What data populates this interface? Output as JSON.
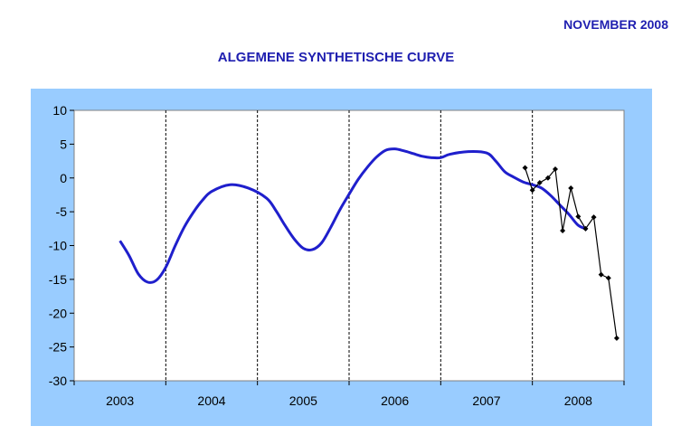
{
  "header": {
    "date": "NOVEMBER 2008",
    "title": "ALGEMENE SYNTHETISCHE CURVE"
  },
  "chart_data": {
    "type": "line",
    "title": "ALGEMENE SYNTHETISCHE CURVE",
    "xlabel": "",
    "ylabel": "",
    "ylim": [
      -30,
      10
    ],
    "yticks": [
      10,
      5,
      0,
      -5,
      -10,
      -15,
      -20,
      -25,
      -30
    ],
    "categories": [
      "2003",
      "2004",
      "2005",
      "2006",
      "2007",
      "2008"
    ],
    "grid": "vertical dashed lines at year boundaries",
    "colors": {
      "synthetic": "#1f1fcc",
      "monthly": "#000000",
      "background": "#99ccff"
    },
    "series": [
      {
        "style": "thick smooth line",
        "x": [
          2003.0,
          2003.1,
          2003.2,
          2003.3,
          2003.4,
          2003.5,
          2003.6,
          2003.7,
          2003.8,
          2003.9,
          2004.0,
          2004.2,
          2004.4,
          2004.6,
          2004.7,
          2004.8,
          2004.9,
          2005.0,
          2005.1,
          2005.2,
          2005.3,
          2005.4,
          2005.5,
          2005.6,
          2005.7,
          2005.8,
          2005.9,
          2006.0,
          2006.1,
          2006.2,
          2006.3,
          2006.4,
          2006.5,
          2006.6,
          2006.8,
          2007.0,
          2007.1,
          2007.2,
          2007.3,
          2007.4,
          2007.5,
          2007.6,
          2007.7,
          2007.8,
          2007.9,
          2008.0,
          2008.1
        ],
        "y": [
          -9.3,
          -11.5,
          -14.2,
          -15.4,
          -15.1,
          -13.2,
          -10.1,
          -7.3,
          -5.1,
          -3.3,
          -2.0,
          -1.0,
          -1.5,
          -3.0,
          -4.8,
          -7.0,
          -9.0,
          -10.4,
          -10.6,
          -9.6,
          -7.3,
          -4.7,
          -2.4,
          -0.2,
          1.6,
          3.1,
          4.1,
          4.3,
          4.0,
          3.6,
          3.2,
          3.0,
          3.0,
          3.5,
          3.9,
          3.7,
          2.5,
          0.9,
          0.1,
          -0.6,
          -1.0,
          -1.5,
          -2.6,
          -4.0,
          -5.4,
          -7.0,
          -7.6
        ]
      },
      {
        "style": "thin line with diamond markers",
        "x": [
          2007.42,
          2007.5,
          2007.58,
          2007.67,
          2007.75,
          2007.83,
          2007.92,
          2008.0,
          2008.08,
          2008.17,
          2008.25,
          2008.33,
          2008.42
        ],
        "y": [
          1.5,
          -1.8,
          -0.7,
          0.0,
          1.3,
          -7.8,
          -1.5,
          -5.7,
          -7.5,
          -5.8,
          -14.3,
          -14.8,
          -23.7
        ]
      }
    ]
  }
}
